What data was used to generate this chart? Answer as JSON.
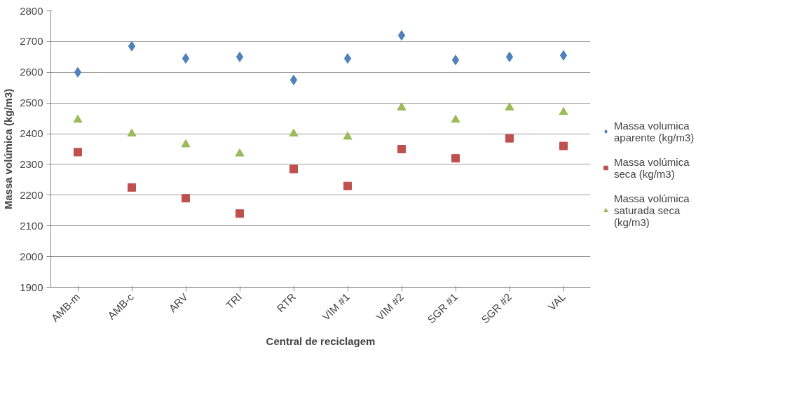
{
  "chart_data": {
    "type": "scatter",
    "xlabel": "Central de reciclagem",
    "ylabel": "Massa volúmica (kg/m3)",
    "categories": [
      "AMB-m",
      "AMB-c",
      "ARV",
      "TRI",
      "RTR",
      "VIM #1",
      "VIM #2",
      "SGR #1",
      "SGR #2",
      "VAL"
    ],
    "series": [
      {
        "name": "Massa volumica aparente (kg/m3)",
        "color": "#4f81bd",
        "marker": "diamond",
        "values": [
          2600,
          2685,
          2645,
          2650,
          2575,
          2645,
          2720,
          2640,
          2650,
          2655
        ]
      },
      {
        "name": "Massa volúmica seca (kg/m3)",
        "color": "#c0504d",
        "marker": "square",
        "values": [
          2340,
          2225,
          2190,
          2140,
          2285,
          2230,
          2350,
          2320,
          2385,
          2360
        ]
      },
      {
        "name": "Massa volúmica saturada seca (kg/m3)",
        "color": "#9bbb59",
        "marker": "triangle",
        "values": [
          2445,
          2400,
          2365,
          2335,
          2400,
          2390,
          2485,
          2445,
          2485,
          2470
        ]
      }
    ],
    "ylim": [
      1900,
      2800
    ],
    "yticks": [
      1900,
      2000,
      2100,
      2200,
      2300,
      2400,
      2500,
      2600,
      2700,
      2800
    ],
    "grid": "y",
    "legend": "right"
  }
}
